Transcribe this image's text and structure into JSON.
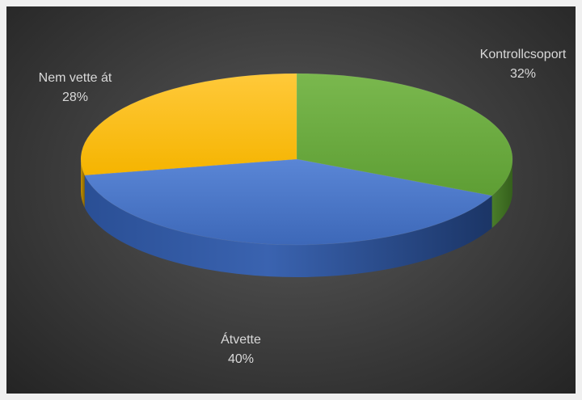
{
  "chart_data": {
    "type": "pie",
    "title": "",
    "style": "3d",
    "labels": [
      "Kontrollcsoport",
      "Átvette",
      "Nem vette át"
    ],
    "values": [
      32,
      40,
      28
    ],
    "value_labels": [
      "32%",
      "40%",
      "28%"
    ],
    "colors": [
      "#6aab3e",
      "#4472c4",
      "#ffc000"
    ],
    "legend": "none"
  }
}
